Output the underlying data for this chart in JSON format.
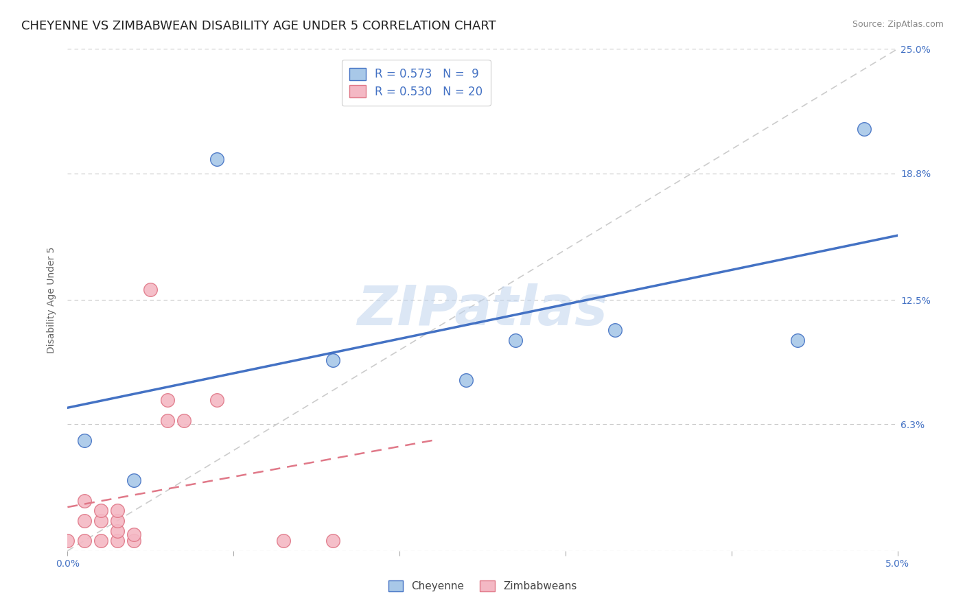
{
  "title": "CHEYENNE VS ZIMBABWEAN DISABILITY AGE UNDER 5 CORRELATION CHART",
  "source": "Source: ZipAtlas.com",
  "ylabel": "Disability Age Under 5",
  "xlim": [
    0.0,
    0.05
  ],
  "ylim": [
    0.0,
    0.25
  ],
  "xticks": [
    0.0,
    0.01,
    0.02,
    0.03,
    0.04,
    0.05
  ],
  "xtick_labels_show": [
    "0.0%",
    "",
    "",
    "",
    "",
    "5.0%"
  ],
  "ytick_labels": [
    "",
    "6.3%",
    "12.5%",
    "18.8%",
    "25.0%"
  ],
  "yticks": [
    0.0,
    0.063,
    0.125,
    0.188,
    0.25
  ],
  "cheyenne_x": [
    0.001,
    0.004,
    0.009,
    0.016,
    0.024,
    0.027,
    0.033,
    0.044,
    0.048
  ],
  "cheyenne_y": [
    0.055,
    0.035,
    0.195,
    0.095,
    0.085,
    0.105,
    0.11,
    0.105,
    0.21
  ],
  "zimbabwe_x": [
    0.0,
    0.001,
    0.001,
    0.001,
    0.002,
    0.002,
    0.002,
    0.003,
    0.003,
    0.003,
    0.003,
    0.004,
    0.004,
    0.005,
    0.006,
    0.006,
    0.007,
    0.009,
    0.013,
    0.016
  ],
  "zimbabwe_y": [
    0.005,
    0.005,
    0.015,
    0.025,
    0.005,
    0.015,
    0.02,
    0.005,
    0.01,
    0.015,
    0.02,
    0.005,
    0.008,
    0.13,
    0.065,
    0.075,
    0.065,
    0.075,
    0.005,
    0.005
  ],
  "R_cheyenne": 0.573,
  "N_cheyenne": 9,
  "R_zimbabwe": 0.53,
  "N_zimbabwe": 20,
  "cheyenne_color": "#a8c8e8",
  "cheyenne_line_color": "#4472c4",
  "zimbabwe_color": "#f4b8c4",
  "zimbabwe_line_color": "#e07888",
  "watermark": "ZIPatlas",
  "background_color": "#ffffff",
  "grid_color": "#c8c8c8",
  "title_fontsize": 13,
  "label_fontsize": 10,
  "tick_fontsize": 10,
  "legend_fontsize": 12,
  "axis_label_color": "#4472c4",
  "tick_label_color": "#4472c4",
  "source_color": "#888888"
}
